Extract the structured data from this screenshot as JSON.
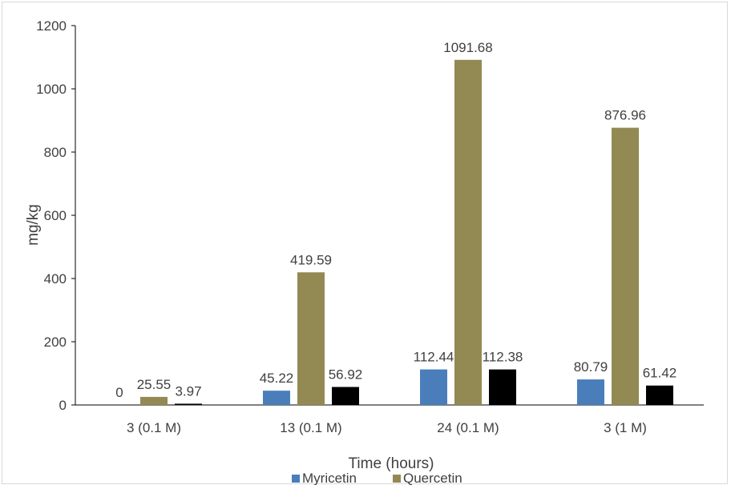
{
  "chart_data": {
    "type": "bar",
    "title": "",
    "xlabel": "Time (hours)",
    "ylabel": "mg/kg",
    "ylim": [
      0,
      1200
    ],
    "yticks": [
      0,
      200,
      400,
      600,
      800,
      1000,
      1200
    ],
    "grid": false,
    "legend_position": "bottom",
    "categories": [
      "3 (0.1 M)",
      "13 (0.1 M)",
      "24 (0.1 M)",
      "3 (1 M)"
    ],
    "series": [
      {
        "name": "Myricetin",
        "color": "#4a7ebb",
        "values": [
          0,
          45.22,
          112.44,
          80.79
        ],
        "labels": [
          "0",
          "45.22",
          "112.44",
          "80.79"
        ]
      },
      {
        "name": "Quercetin",
        "color": "#938953",
        "values": [
          25.55,
          419.59,
          1091.68,
          876.96
        ],
        "labels": [
          "25.55",
          "419.59",
          "1091.68",
          "876.96"
        ]
      },
      {
        "name": "",
        "color": "#000000",
        "values": [
          3.97,
          56.92,
          112.38,
          61.42
        ],
        "labels": [
          "3.97",
          "56.92",
          "112.38",
          "61.42"
        ]
      }
    ],
    "legend": [
      "Myricetin",
      "Quercetin"
    ]
  }
}
